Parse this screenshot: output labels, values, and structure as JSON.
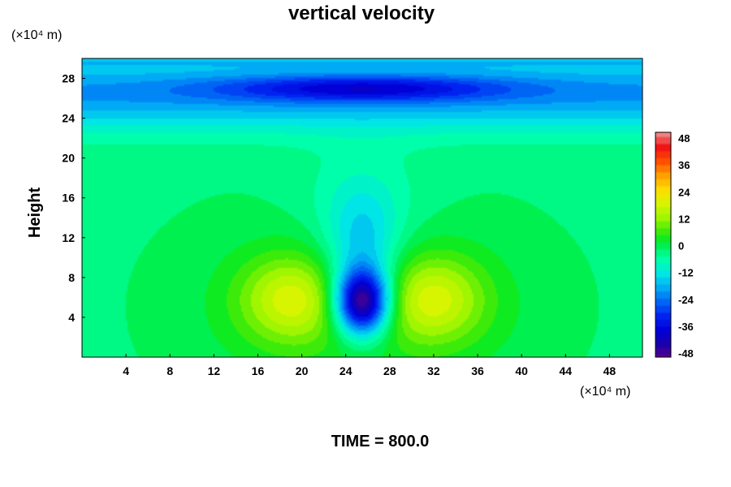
{
  "chart_data": {
    "type": "heatmap",
    "title": "vertical velocity",
    "ylabel": "Height",
    "xlabel": "",
    "x_unit": "(×10⁴ m)",
    "y_unit": "(×10⁴ m)",
    "footer": "TIME = 800.0",
    "xlim": [
      0,
      51
    ],
    "ylim": [
      0,
      30
    ],
    "x_ticks": [
      "4",
      "8",
      "12",
      "16",
      "20",
      "24",
      "28",
      "32",
      "36",
      "40",
      "44",
      "48"
    ],
    "y_ticks": [
      "4",
      "8",
      "12",
      "16",
      "20",
      "24",
      "28"
    ],
    "x_tick_values": [
      4,
      8,
      12,
      16,
      20,
      24,
      28,
      32,
      36,
      40,
      44,
      48
    ],
    "y_tick_values": [
      4,
      8,
      12,
      16,
      20,
      24,
      28
    ],
    "colorbar": {
      "min": -48,
      "max": 48,
      "tick_labels": [
        "48",
        "36",
        "24",
        "12",
        "0",
        "-12",
        "-24",
        "-36",
        "-48"
      ],
      "tick_values": [
        48,
        36,
        24,
        12,
        0,
        -12,
        -24,
        -36,
        -48
      ]
    },
    "features": [
      {
        "description": "downdraft core",
        "x": 25.5,
        "y": 5.5,
        "value": -48
      },
      {
        "description": "updraft lobe left",
        "x": 19,
        "y": 5.8,
        "value": 12
      },
      {
        "description": "updraft lobe right",
        "x": 32,
        "y": 5.8,
        "value": 12
      },
      {
        "description": "upper negative band",
        "x": 25.5,
        "y": 27,
        "value": -36
      }
    ]
  },
  "colors": {
    "background": "#ffffff",
    "text": "#000000"
  }
}
